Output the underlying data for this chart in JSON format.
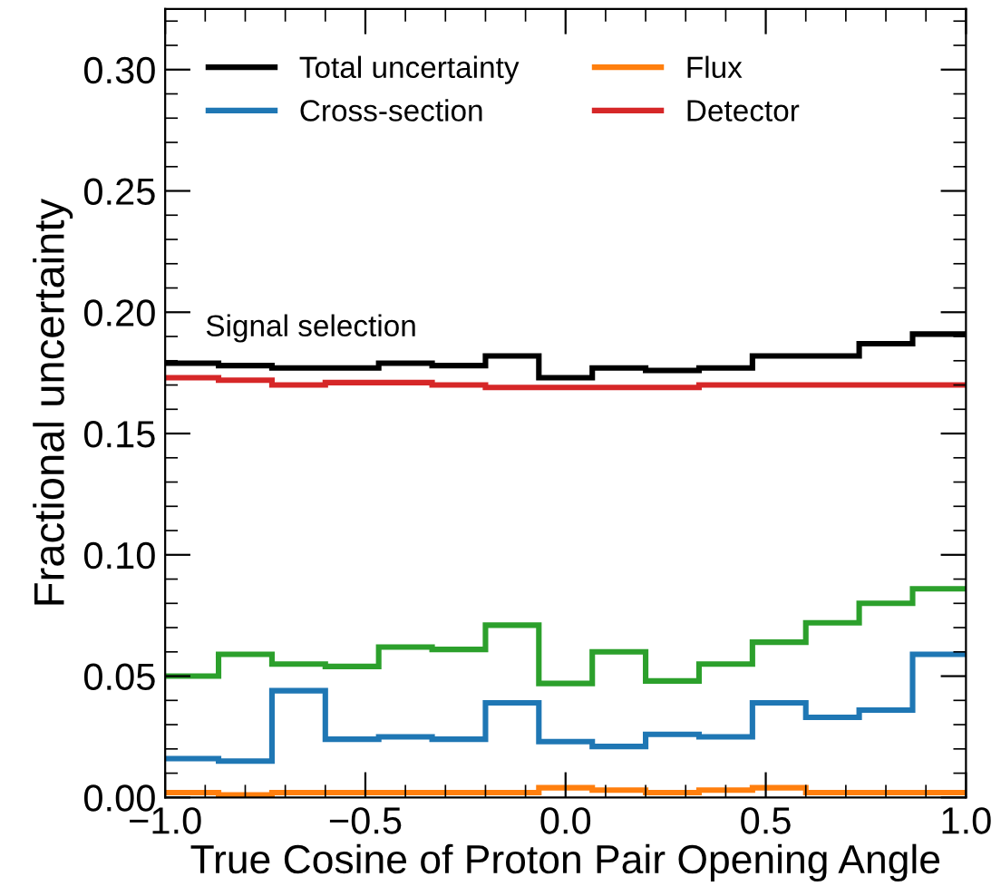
{
  "chart_data": {
    "type": "histogram",
    "xlabel": "True Cosine of Proton Pair Opening Angle",
    "ylabel": "Fractional uncertainty",
    "annotations": [
      "Signal selection"
    ],
    "bins": [
      -1.0,
      -0.8667,
      -0.7333,
      -0.6,
      -0.4667,
      -0.3333,
      -0.2,
      -0.0667,
      0.0667,
      0.2,
      0.3333,
      0.4667,
      0.6,
      0.7333,
      0.8667,
      1.0
    ],
    "series": [
      {
        "name": "Total uncertainty",
        "color": "#000000",
        "values": [
          0.179,
          0.178,
          0.177,
          0.177,
          0.179,
          0.178,
          0.182,
          0.173,
          0.177,
          0.176,
          0.177,
          0.182,
          0.182,
          0.187,
          0.191
        ]
      },
      {
        "name": "Cross-section",
        "color": "#1f77b4",
        "values": [
          0.016,
          0.015,
          0.044,
          0.024,
          0.025,
          0.024,
          0.039,
          0.023,
          0.021,
          0.026,
          0.025,
          0.039,
          0.033,
          0.036,
          0.059
        ]
      },
      {
        "name": "Flux",
        "color": "#ff7f0e",
        "values": [
          0.002,
          0.001,
          0.002,
          0.002,
          0.002,
          0.002,
          0.002,
          0.004,
          0.003,
          0.002,
          0.003,
          0.004,
          0.002,
          0.002,
          0.002
        ]
      },
      {
        "color": "#2ca02c",
        "values": [
          0.05,
          0.059,
          0.055,
          0.054,
          0.062,
          0.061,
          0.071,
          0.047,
          0.06,
          0.048,
          0.055,
          0.064,
          0.072,
          0.08,
          0.086
        ]
      },
      {
        "name": "Detector",
        "color": "#d62728",
        "values": [
          0.173,
          0.172,
          0.17,
          0.171,
          0.171,
          0.17,
          0.169,
          0.169,
          0.169,
          0.169,
          0.17,
          0.17,
          0.17,
          0.17,
          0.17
        ]
      }
    ],
    "xlim": [
      -1.0,
      1.0
    ],
    "ylim": [
      0.0,
      0.325
    ],
    "xticks": [
      {
        "value": -1.0,
        "label": "−1.0"
      },
      {
        "value": -0.5,
        "label": "−0.5"
      },
      {
        "value": 0.0,
        "label": "0.0"
      },
      {
        "value": 0.5,
        "label": "0.5"
      },
      {
        "value": 1.0,
        "label": "1.0"
      }
    ],
    "yticks": [
      {
        "value": 0.0,
        "label": "0.00"
      },
      {
        "value": 0.05,
        "label": "0.05"
      },
      {
        "value": 0.1,
        "label": "0.10"
      },
      {
        "value": 0.15,
        "label": "0.15"
      },
      {
        "value": 0.2,
        "label": "0.20"
      },
      {
        "value": 0.25,
        "label": "0.25"
      },
      {
        "value": 0.3,
        "label": "0.30"
      }
    ],
    "legend": "top left",
    "grid": false
  }
}
